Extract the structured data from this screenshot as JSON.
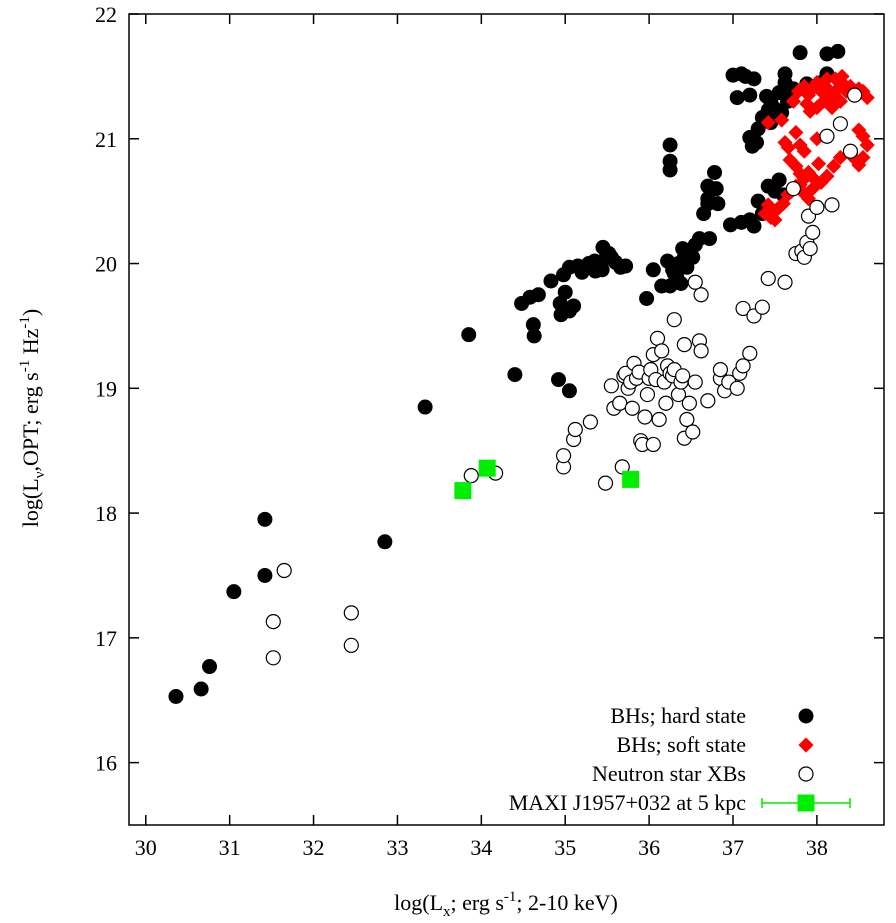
{
  "chart_data": {
    "type": "scatter",
    "xlabel": {
      "pre": "log(L",
      "sub": "x",
      "mid": "; erg s",
      "sup": "-1",
      "post": "; 2-10 keV)"
    },
    "ylabel": {
      "pre": "log(L",
      "sub": "ν",
      "mid1": ",OPT; erg s",
      "sup1": "-1",
      "mid2": " Hz",
      "sup2": "-1",
      "post": ")"
    },
    "xlim": [
      29.8,
      38.8
    ],
    "ylim": [
      15.5,
      22
    ],
    "xticks": [
      "30",
      "31",
      "32",
      "33",
      "34",
      "35",
      "36",
      "37",
      "38"
    ],
    "yticks": [
      "16",
      "17",
      "18",
      "19",
      "20",
      "21",
      "22"
    ],
    "legend_position": "bottom-right",
    "grid": false,
    "series": [
      {
        "name": "BHs; hard state",
        "marker": "filled-circle",
        "color": "#000000",
        "points": [
          [
            30.36,
            16.53
          ],
          [
            30.66,
            16.59
          ],
          [
            30.76,
            16.77
          ],
          [
            31.05,
            17.37
          ],
          [
            31.42,
            17.5
          ],
          [
            31.42,
            17.95
          ],
          [
            32.85,
            17.77
          ],
          [
            33.33,
            18.85
          ],
          [
            33.85,
            19.43
          ],
          [
            34.4,
            19.11
          ],
          [
            34.92,
            19.07
          ],
          [
            35.05,
            18.98
          ],
          [
            34.48,
            19.68
          ],
          [
            34.58,
            19.73
          ],
          [
            34.62,
            19.51
          ],
          [
            34.63,
            19.42
          ],
          [
            34.68,
            19.75
          ],
          [
            34.83,
            19.86
          ],
          [
            34.94,
            19.68
          ],
          [
            34.95,
            19.59
          ],
          [
            35.0,
            19.77
          ],
          [
            35.05,
            19.62
          ],
          [
            35.1,
            19.66
          ],
          [
            34.98,
            19.91
          ],
          [
            35.05,
            19.97
          ],
          [
            35.15,
            19.98
          ],
          [
            35.2,
            19.93
          ],
          [
            35.28,
            20.0
          ],
          [
            35.36,
            19.94
          ],
          [
            35.44,
            19.95
          ],
          [
            35.48,
            20.04
          ],
          [
            35.55,
            20.05
          ],
          [
            35.6,
            20.01
          ],
          [
            35.66,
            19.97
          ],
          [
            35.72,
            19.98
          ],
          [
            35.35,
            20.02
          ],
          [
            35.45,
            20.13
          ],
          [
            35.52,
            20.08
          ],
          [
            35.4,
            19.96
          ],
          [
            35.97,
            19.72
          ],
          [
            36.05,
            19.95
          ],
          [
            36.15,
            19.82
          ],
          [
            36.22,
            20.02
          ],
          [
            36.28,
            19.95
          ],
          [
            36.33,
            19.89
          ],
          [
            36.38,
            19.84
          ],
          [
            36.42,
            20.05
          ],
          [
            36.48,
            20.1
          ],
          [
            36.55,
            20.15
          ],
          [
            36.6,
            20.2
          ],
          [
            36.35,
            20.0
          ],
          [
            36.45,
            19.97
          ],
          [
            36.52,
            20.05
          ],
          [
            36.4,
            20.12
          ],
          [
            36.3,
            19.92
          ],
          [
            36.25,
            19.82
          ],
          [
            36.25,
            20.95
          ],
          [
            36.25,
            20.82
          ],
          [
            36.25,
            20.75
          ],
          [
            36.72,
            20.2
          ],
          [
            36.65,
            20.4
          ],
          [
            36.7,
            20.48
          ],
          [
            36.7,
            20.52
          ],
          [
            36.7,
            20.62
          ],
          [
            36.78,
            20.73
          ],
          [
            36.8,
            20.6
          ],
          [
            36.82,
            20.48
          ],
          [
            36.97,
            20.31
          ],
          [
            37.1,
            20.33
          ],
          [
            37.2,
            20.35
          ],
          [
            37.25,
            20.3
          ],
          [
            37.3,
            20.5
          ],
          [
            37.42,
            20.62
          ],
          [
            37.5,
            20.58
          ],
          [
            37.55,
            20.67
          ],
          [
            37.35,
            20.4
          ],
          [
            37.6,
            20.55
          ],
          [
            37.2,
            21.01
          ],
          [
            37.23,
            20.94
          ],
          [
            37.28,
            20.97
          ],
          [
            37.35,
            21.17
          ],
          [
            37.45,
            21.13
          ],
          [
            37.5,
            21.24
          ],
          [
            37.58,
            21.21
          ],
          [
            37.65,
            21.3
          ],
          [
            37.7,
            21.34
          ],
          [
            37.42,
            21.23
          ],
          [
            37.3,
            21.08
          ],
          [
            37.0,
            21.51
          ],
          [
            37.1,
            21.52
          ],
          [
            37.15,
            21.5
          ],
          [
            37.25,
            21.48
          ],
          [
            37.05,
            21.33
          ],
          [
            37.2,
            21.35
          ],
          [
            37.4,
            21.34
          ],
          [
            37.45,
            21.3
          ],
          [
            37.55,
            21.37
          ],
          [
            37.62,
            21.45
          ],
          [
            37.72,
            21.4
          ],
          [
            37.62,
            21.52
          ],
          [
            37.8,
            21.69
          ],
          [
            38.12,
            21.68
          ],
          [
            38.25,
            21.7
          ],
          [
            37.88,
            21.44
          ],
          [
            38.05,
            21.45
          ],
          [
            38.12,
            21.52
          ]
        ]
      },
      {
        "name": "BHs; soft state",
        "marker": "filled-diamond",
        "color": "#ff0000",
        "points": [
          [
            37.42,
            21.13
          ],
          [
            37.58,
            21.15
          ],
          [
            37.62,
            20.97
          ],
          [
            37.66,
            20.93
          ],
          [
            37.68,
            20.83
          ],
          [
            37.75,
            20.78
          ],
          [
            37.8,
            20.72
          ],
          [
            37.82,
            20.58
          ],
          [
            37.9,
            20.73
          ],
          [
            37.95,
            20.69
          ],
          [
            38.05,
            20.65
          ],
          [
            38.12,
            20.7
          ],
          [
            38.2,
            20.78
          ],
          [
            38.28,
            20.85
          ],
          [
            38.4,
            20.88
          ],
          [
            38.45,
            20.84
          ],
          [
            38.5,
            20.79
          ],
          [
            38.55,
            20.85
          ],
          [
            38.5,
            21.07
          ],
          [
            38.55,
            21.02
          ],
          [
            38.6,
            20.95
          ],
          [
            37.38,
            20.4
          ],
          [
            37.45,
            20.37
          ],
          [
            37.5,
            20.35
          ],
          [
            37.55,
            20.45
          ],
          [
            37.6,
            20.48
          ],
          [
            37.65,
            20.55
          ],
          [
            37.7,
            20.58
          ],
          [
            37.75,
            20.62
          ],
          [
            37.8,
            20.63
          ],
          [
            37.85,
            20.68
          ],
          [
            37.9,
            20.52
          ],
          [
            37.95,
            20.6
          ],
          [
            37.52,
            20.43
          ],
          [
            37.42,
            20.47
          ],
          [
            37.72,
            21.3
          ],
          [
            37.78,
            21.38
          ],
          [
            37.85,
            21.42
          ],
          [
            37.9,
            21.35
          ],
          [
            37.95,
            21.4
          ],
          [
            38.0,
            21.45
          ],
          [
            38.05,
            21.38
          ],
          [
            38.1,
            21.42
          ],
          [
            38.15,
            21.35
          ],
          [
            38.2,
            21.32
          ],
          [
            38.25,
            21.4
          ],
          [
            38.3,
            21.45
          ],
          [
            38.35,
            21.38
          ],
          [
            38.4,
            21.42
          ],
          [
            38.45,
            21.35
          ],
          [
            38.5,
            21.4
          ],
          [
            38.55,
            21.38
          ],
          [
            38.6,
            21.33
          ],
          [
            37.88,
            21.28
          ],
          [
            37.92,
            21.22
          ],
          [
            38.0,
            21.25
          ],
          [
            38.08,
            21.3
          ],
          [
            38.12,
            21.48
          ],
          [
            38.22,
            21.48
          ],
          [
            38.3,
            21.5
          ],
          [
            38.18,
            21.25
          ],
          [
            38.28,
            21.3
          ],
          [
            37.75,
            21.05
          ],
          [
            37.8,
            20.95
          ],
          [
            37.85,
            20.9
          ],
          [
            38.0,
            21.0
          ],
          [
            38.02,
            20.8
          ]
        ]
      },
      {
        "name": "Neutron star XBs",
        "marker": "open-circle",
        "color": "#000000",
        "points": [
          [
            31.52,
            17.13
          ],
          [
            31.52,
            16.84
          ],
          [
            31.65,
            17.54
          ],
          [
            32.45,
            17.2
          ],
          [
            32.45,
            16.94
          ],
          [
            33.88,
            18.3
          ],
          [
            34.17,
            18.32
          ],
          [
            34.98,
            18.37
          ],
          [
            34.98,
            18.46
          ],
          [
            35.1,
            18.59
          ],
          [
            35.12,
            18.67
          ],
          [
            35.3,
            18.73
          ],
          [
            35.48,
            18.24
          ],
          [
            35.58,
            18.84
          ],
          [
            35.55,
            19.02
          ],
          [
            35.65,
            18.88
          ],
          [
            35.68,
            18.37
          ],
          [
            35.7,
            19.1
          ],
          [
            35.72,
            19.12
          ],
          [
            35.75,
            19.0
          ],
          [
            35.78,
            19.05
          ],
          [
            35.8,
            18.84
          ],
          [
            35.82,
            19.2
          ],
          [
            35.85,
            19.08
          ],
          [
            35.88,
            19.13
          ],
          [
            35.9,
            18.58
          ],
          [
            35.92,
            18.55
          ],
          [
            35.95,
            18.77
          ],
          [
            35.98,
            18.95
          ],
          [
            36.0,
            19.08
          ],
          [
            36.02,
            19.15
          ],
          [
            36.05,
            19.27
          ],
          [
            36.05,
            18.55
          ],
          [
            36.08,
            19.07
          ],
          [
            36.1,
            19.4
          ],
          [
            36.12,
            18.75
          ],
          [
            36.15,
            19.3
          ],
          [
            36.18,
            19.05
          ],
          [
            36.2,
            18.88
          ],
          [
            36.22,
            19.18
          ],
          [
            36.25,
            19.12
          ],
          [
            36.28,
            19.1
          ],
          [
            36.3,
            19.15
          ],
          [
            36.3,
            19.55
          ],
          [
            36.35,
            18.95
          ],
          [
            36.38,
            19.05
          ],
          [
            36.4,
            19.1
          ],
          [
            36.42,
            18.6
          ],
          [
            36.42,
            19.35
          ],
          [
            36.45,
            18.75
          ],
          [
            36.48,
            18.88
          ],
          [
            36.52,
            18.65
          ],
          [
            36.55,
            19.05
          ],
          [
            36.6,
            19.38
          ],
          [
            36.62,
            19.3
          ],
          [
            36.7,
            18.9
          ],
          [
            36.85,
            19.08
          ],
          [
            36.85,
            19.15
          ],
          [
            36.9,
            18.98
          ],
          [
            36.95,
            19.05
          ],
          [
            37.05,
            19.0
          ],
          [
            37.08,
            19.12
          ],
          [
            37.12,
            19.18
          ],
          [
            37.2,
            19.28
          ],
          [
            36.62,
            19.75
          ],
          [
            36.55,
            19.85
          ],
          [
            37.12,
            19.64
          ],
          [
            37.25,
            19.58
          ],
          [
            37.35,
            19.65
          ],
          [
            37.42,
            19.88
          ],
          [
            37.62,
            19.85
          ],
          [
            37.75,
            20.08
          ],
          [
            37.82,
            20.1
          ],
          [
            37.85,
            20.05
          ],
          [
            37.88,
            20.17
          ],
          [
            37.9,
            20.38
          ],
          [
            37.92,
            20.12
          ],
          [
            37.95,
            20.25
          ],
          [
            38.0,
            20.45
          ],
          [
            38.12,
            21.02
          ],
          [
            38.18,
            20.47
          ],
          [
            38.28,
            21.12
          ],
          [
            38.4,
            20.9
          ],
          [
            38.45,
            21.35
          ],
          [
            37.72,
            20.6
          ]
        ]
      },
      {
        "name": "MAXI J1957+032 at 5 kpc",
        "marker": "filled-square",
        "color": "#00ee00",
        "points": [
          [
            33.78,
            18.18
          ],
          [
            34.07,
            18.36
          ],
          [
            35.78,
            18.27
          ]
        ]
      }
    ]
  }
}
